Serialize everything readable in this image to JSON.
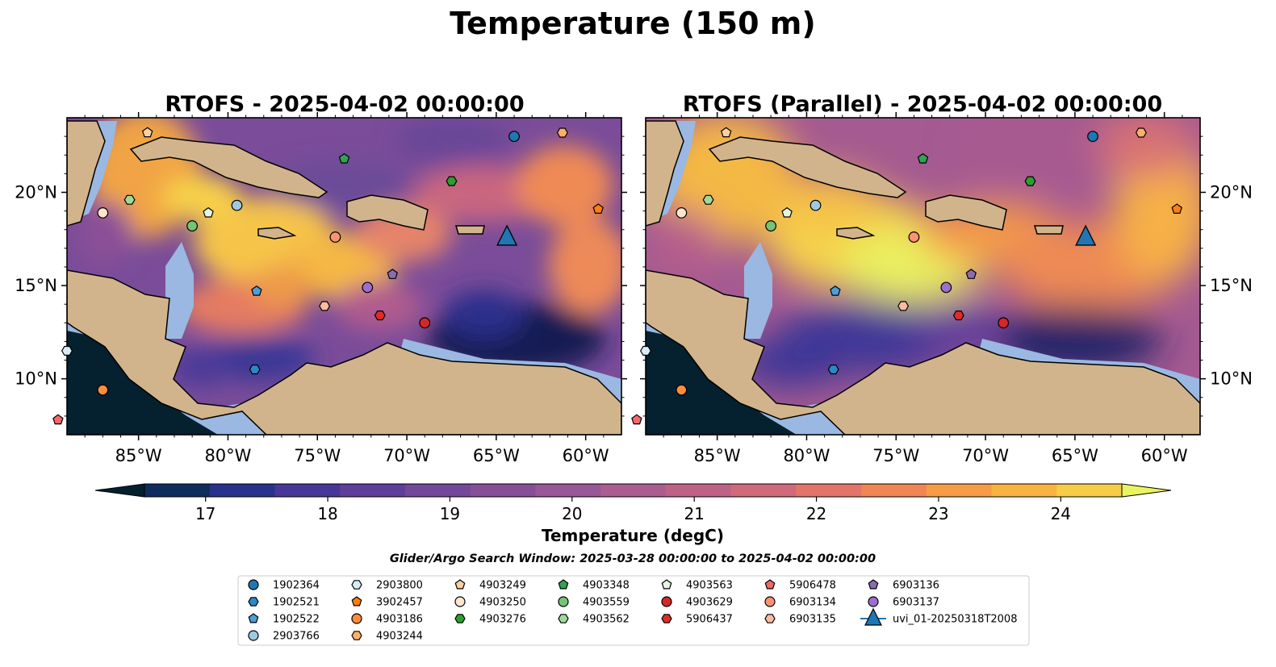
{
  "figure": {
    "title": "Temperature (150 m)",
    "search_window": "Glider/Argo Search Window: 2025-03-28 00:00:00 to 2025-04-02 00:00:00"
  },
  "chart_data": [
    {
      "type": "heatmap",
      "title": "RTOFS - 2025-04-02 00:00:00",
      "x_range": [
        -89,
        -58
      ],
      "y_range": [
        7,
        24
      ],
      "x_ticks": [
        "85°W",
        "80°W",
        "75°W",
        "70°W",
        "65°W",
        "60°W"
      ],
      "y_ticks": [
        "20°N",
        "15°N",
        "10°N"
      ],
      "y_tick_side": "left",
      "field": "Temperature (degC) at 150 m"
    },
    {
      "type": "heatmap",
      "title": "RTOFS (Parallel) - 2025-04-02 00:00:00",
      "x_range": [
        -89,
        -58
      ],
      "y_range": [
        7,
        24
      ],
      "x_ticks": [
        "85°W",
        "80°W",
        "75°W",
        "70°W",
        "65°W",
        "60°W"
      ],
      "y_ticks": [
        "20°N",
        "15°N",
        "10°N"
      ],
      "y_tick_side": "right",
      "field": "Temperature (degC) at 150 m"
    }
  ],
  "colorbar": {
    "label": "Temperature (degC)",
    "min": 16.5,
    "max": 24.5,
    "ticks": [
      "17",
      "18",
      "19",
      "20",
      "21",
      "22",
      "23",
      "24"
    ],
    "colors": [
      "#04202f",
      "#0e2d5d",
      "#27328c",
      "#463799",
      "#5e3e9b",
      "#73479a",
      "#864f98",
      "#985796",
      "#ab5d8f",
      "#be6285",
      "#d06a7a",
      "#e2746a",
      "#f08656",
      "#f79c46",
      "#fab33e",
      "#f7cd48",
      "#e9f45e"
    ]
  },
  "land_color": "#d2b48c",
  "shelf_color": "#9ab8e1",
  "platforms": [
    {
      "id": "1902364",
      "marker": "circle",
      "color": "#1f77b4",
      "lon": -64.0,
      "lat": 23.0
    },
    {
      "id": "1902521",
      "marker": "hexagon",
      "color": "#2a88c8",
      "lon": -78.5,
      "lat": 10.5
    },
    {
      "id": "1902522",
      "marker": "pentagon",
      "color": "#4a9fdc",
      "lon": -78.4,
      "lat": 14.7
    },
    {
      "id": "2903766",
      "marker": "circle",
      "color": "#9ecae1",
      "lon": -79.5,
      "lat": 19.3
    },
    {
      "id": "2903800",
      "marker": "hexagon",
      "color": "#d6ecf8",
      "lon": -89.0,
      "lat": 11.5
    },
    {
      "id": "3902457",
      "marker": "pentagon",
      "color": "#ff7f0e",
      "lon": -59.3,
      "lat": 19.1
    },
    {
      "id": "4903186",
      "marker": "circle",
      "color": "#fd8d3c",
      "lon": -87.0,
      "lat": 9.4
    },
    {
      "id": "4903244",
      "marker": "hexagon",
      "color": "#fdae6b",
      "lon": -61.3,
      "lat": 23.2
    },
    {
      "id": "4903249",
      "marker": "pentagon",
      "color": "#fdd0a2",
      "lon": -84.5,
      "lat": 23.2
    },
    {
      "id": "4903250",
      "marker": "circle",
      "color": "#fee6ce",
      "lon": -87.0,
      "lat": 18.9
    },
    {
      "id": "4903276",
      "marker": "hexagon",
      "color": "#2ca02c",
      "lon": -67.5,
      "lat": 20.6
    },
    {
      "id": "4903348",
      "marker": "pentagon",
      "color": "#31a354",
      "lon": -73.5,
      "lat": 21.8
    },
    {
      "id": "4903559",
      "marker": "circle",
      "color": "#74c476",
      "lon": -82.0,
      "lat": 18.2
    },
    {
      "id": "4903562",
      "marker": "hexagon",
      "color": "#a1d99b",
      "lon": -85.5,
      "lat": 19.6
    },
    {
      "id": "4903563",
      "marker": "pentagon",
      "color": "#e5f5e0",
      "lon": -81.1,
      "lat": 18.9
    },
    {
      "id": "4903629",
      "marker": "circle",
      "color": "#d62728",
      "lon": -69.0,
      "lat": 13.0
    },
    {
      "id": "5906437",
      "marker": "hexagon",
      "color": "#de2d26",
      "lon": -71.5,
      "lat": 13.4
    },
    {
      "id": "5906478",
      "marker": "pentagon",
      "color": "#f4686a",
      "lon": -89.5,
      "lat": 7.8
    },
    {
      "id": "6903134",
      "marker": "circle",
      "color": "#fc9272",
      "lon": -74.0,
      "lat": 17.6
    },
    {
      "id": "6903135",
      "marker": "hexagon",
      "color": "#fcbba1",
      "lon": -74.6,
      "lat": 13.9
    },
    {
      "id": "6903136",
      "marker": "pentagon",
      "color": "#8c6bb1",
      "lon": -70.8,
      "lat": 15.6
    },
    {
      "id": "6903137",
      "marker": "circle",
      "color": "#9b6fce",
      "lon": -72.2,
      "lat": 14.9
    },
    {
      "id": "uvi_01-20250318T2008",
      "marker": "triangle",
      "color": "#1f77b4",
      "lon": -64.4,
      "lat": 17.6
    }
  ]
}
